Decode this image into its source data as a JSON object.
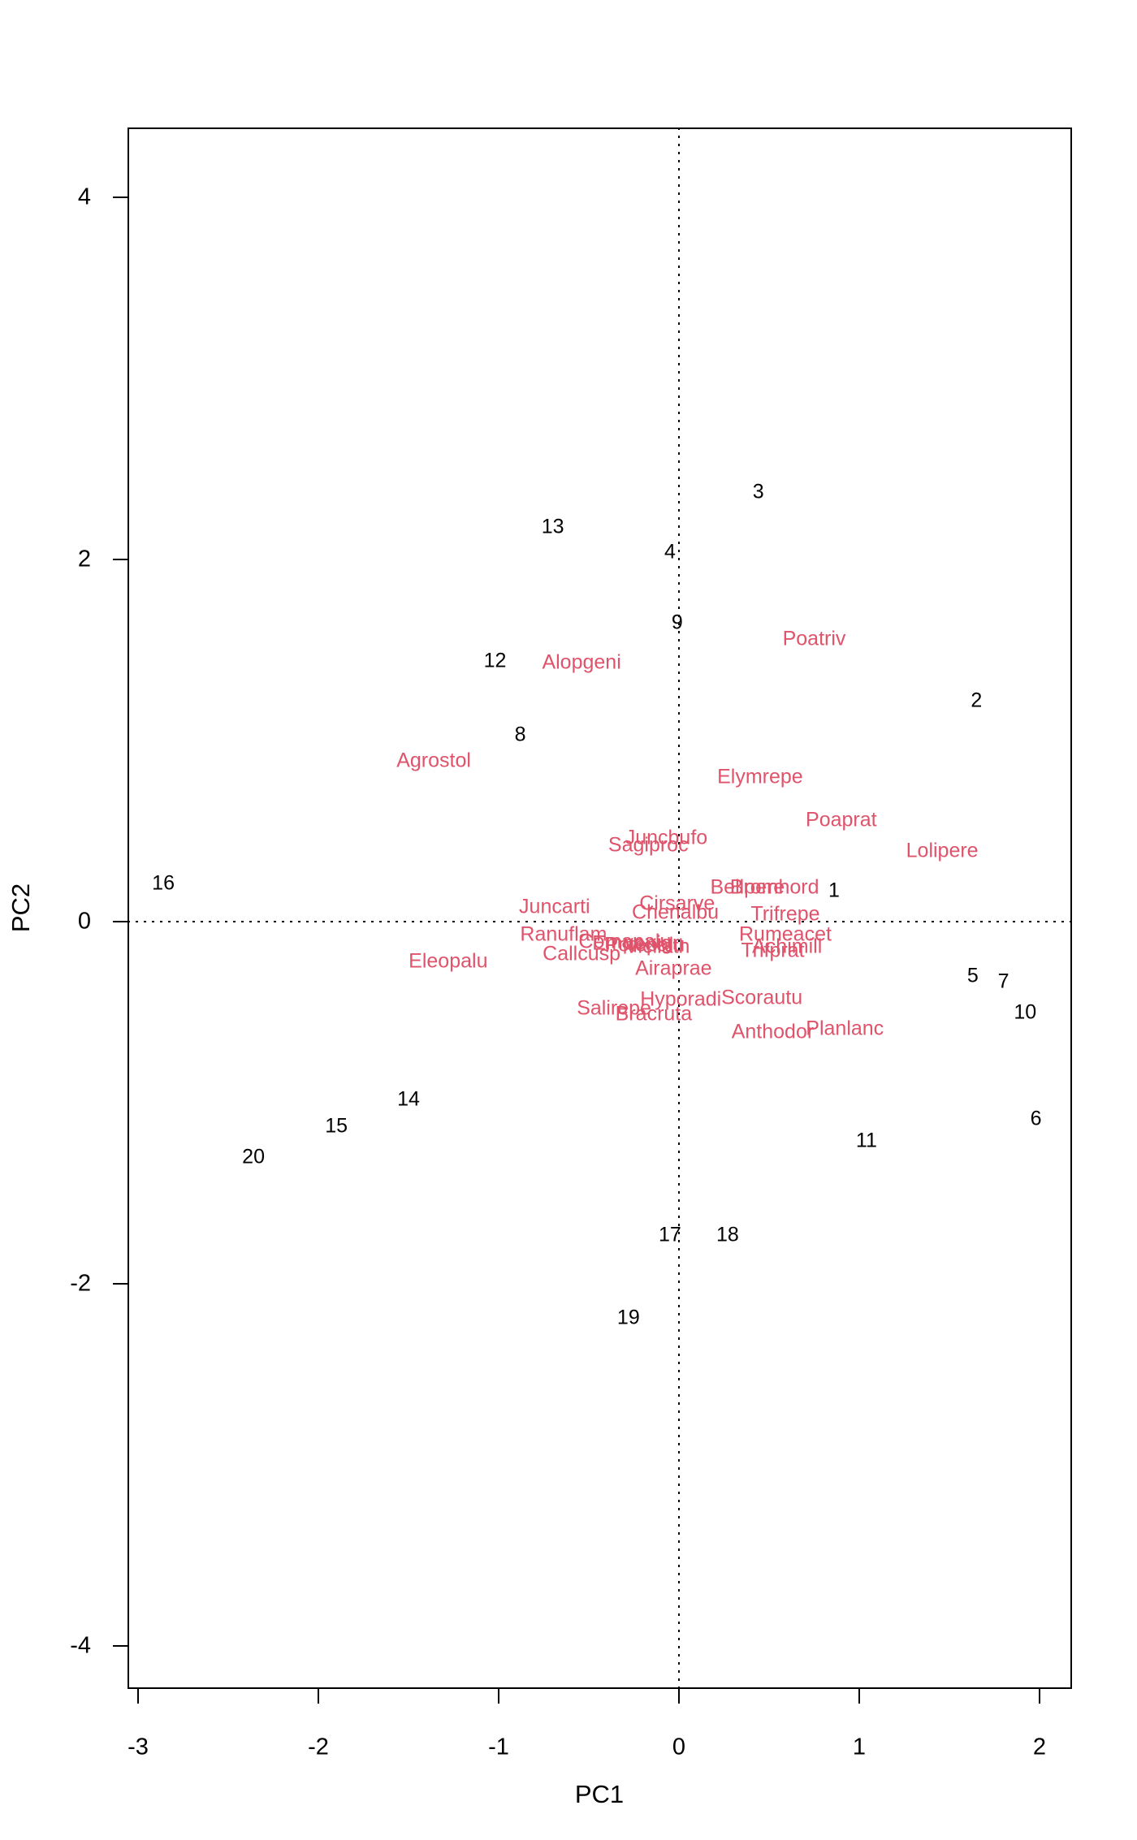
{
  "figure": {
    "background": "#ffffff",
    "axis_color": "#000000",
    "site_label_color": "#000000",
    "species_label_color": "#DF536B",
    "reference_line_style": "dotted"
  },
  "chart_data": {
    "type": "scatter",
    "subtype": "pca-biplot",
    "title": "",
    "xlabel": "PC1",
    "ylabel": "PC2",
    "xlim": [
      -3.06,
      2.18
    ],
    "ylim": [
      -4.24,
      4.39
    ],
    "xticks": [
      "-3",
      "-2",
      "-1",
      "0",
      "1",
      "2"
    ],
    "xtick_values": [
      -3,
      -2,
      -1,
      0,
      1,
      2
    ],
    "yticks": [
      "-4",
      "-2",
      "0",
      "2",
      "4"
    ],
    "ytick_values": [
      -4,
      -2,
      0,
      2,
      4
    ],
    "grid": false,
    "legend": "none",
    "reference_lines": {
      "vertical_x": 0,
      "horizontal_y": 0,
      "style": "dotted"
    },
    "series": [
      {
        "name": "sites",
        "color": "#000000",
        "points": [
          {
            "label": "1",
            "x": 0.86,
            "y": 0.17
          },
          {
            "label": "2",
            "x": 1.65,
            "y": 1.22
          },
          {
            "label": "3",
            "x": 0.44,
            "y": 2.37
          },
          {
            "label": "4",
            "x": -0.05,
            "y": 2.04
          },
          {
            "label": "5",
            "x": 1.63,
            "y": -0.3
          },
          {
            "label": "6",
            "x": 1.98,
            "y": -1.09
          },
          {
            "label": "7",
            "x": 1.8,
            "y": -0.33
          },
          {
            "label": "8",
            "x": -0.88,
            "y": 1.03
          },
          {
            "label": "9",
            "x": -0.01,
            "y": 1.65
          },
          {
            "label": "10",
            "x": 1.92,
            "y": -0.5
          },
          {
            "label": "11",
            "x": 1.04,
            "y": -1.21
          },
          {
            "label": "12",
            "x": -1.02,
            "y": 1.44
          },
          {
            "label": "13",
            "x": -0.7,
            "y": 2.18
          },
          {
            "label": "14",
            "x": -1.5,
            "y": -0.98
          },
          {
            "label": "15",
            "x": -1.9,
            "y": -1.13
          },
          {
            "label": "16",
            "x": -2.86,
            "y": 0.21
          },
          {
            "label": "17",
            "x": -0.05,
            "y": -1.73
          },
          {
            "label": "18",
            "x": 0.27,
            "y": -1.73
          },
          {
            "label": "19",
            "x": -0.28,
            "y": -2.19
          },
          {
            "label": "20",
            "x": -2.36,
            "y": -1.3
          }
        ]
      },
      {
        "name": "species",
        "color": "#DF536B",
        "points": [
          {
            "label": "Achimill",
            "x": 0.6,
            "y": -0.14
          },
          {
            "label": "Agrostol",
            "x": -1.36,
            "y": 0.89
          },
          {
            "label": "Airaprae",
            "x": -0.03,
            "y": -0.26
          },
          {
            "label": "Alopgeni",
            "x": -0.54,
            "y": 1.43
          },
          {
            "label": "Anthodor",
            "x": 0.52,
            "y": -0.61
          },
          {
            "label": "Bellpere",
            "x": 0.38,
            "y": 0.19
          },
          {
            "label": "Bracruta",
            "x": -0.14,
            "y": -0.51
          },
          {
            "label": "Bromhord",
            "x": 0.53,
            "y": 0.19
          },
          {
            "label": "Callcusp",
            "x": -0.54,
            "y": -0.18
          },
          {
            "label": "Chenalbu",
            "x": -0.02,
            "y": 0.05
          },
          {
            "label": "Cirsarve",
            "x": -0.01,
            "y": 0.1
          },
          {
            "label": "Comapalu",
            "x": -0.3,
            "y": -0.11
          },
          {
            "label": "Eleopalu",
            "x": -1.28,
            "y": -0.22
          },
          {
            "label": "Elymrepe",
            "x": 0.45,
            "y": 0.8
          },
          {
            "label": "Empenigr",
            "x": -0.24,
            "y": -0.12
          },
          {
            "label": "Hyporadi",
            "x": 0.01,
            "y": -0.43
          },
          {
            "label": "Juncarti",
            "x": -0.69,
            "y": 0.08
          },
          {
            "label": "Juncbufo",
            "x": -0.07,
            "y": 0.46
          },
          {
            "label": "Lolipere",
            "x": 1.46,
            "y": 0.39
          },
          {
            "label": "Planlanc",
            "x": 0.92,
            "y": -0.59
          },
          {
            "label": "Poaprat",
            "x": 0.9,
            "y": 0.56
          },
          {
            "label": "Poatriv",
            "x": 0.75,
            "y": 1.56
          },
          {
            "label": "Potepalu",
            "x": -0.19,
            "y": -0.13
          },
          {
            "label": "Ranuflam",
            "x": -0.64,
            "y": -0.07
          },
          {
            "label": "Rumeacet",
            "x": 0.59,
            "y": -0.07
          },
          {
            "label": "Sagiproc",
            "x": -0.17,
            "y": 0.42
          },
          {
            "label": "Salirepe",
            "x": -0.36,
            "y": -0.48
          },
          {
            "label": "Scorautu",
            "x": 0.46,
            "y": -0.42
          },
          {
            "label": "Trifprat",
            "x": 0.52,
            "y": -0.16
          },
          {
            "label": "Trifrepe",
            "x": 0.59,
            "y": 0.04
          },
          {
            "label": "Vicilath",
            "x": -0.12,
            "y": -0.14
          }
        ]
      }
    ]
  }
}
